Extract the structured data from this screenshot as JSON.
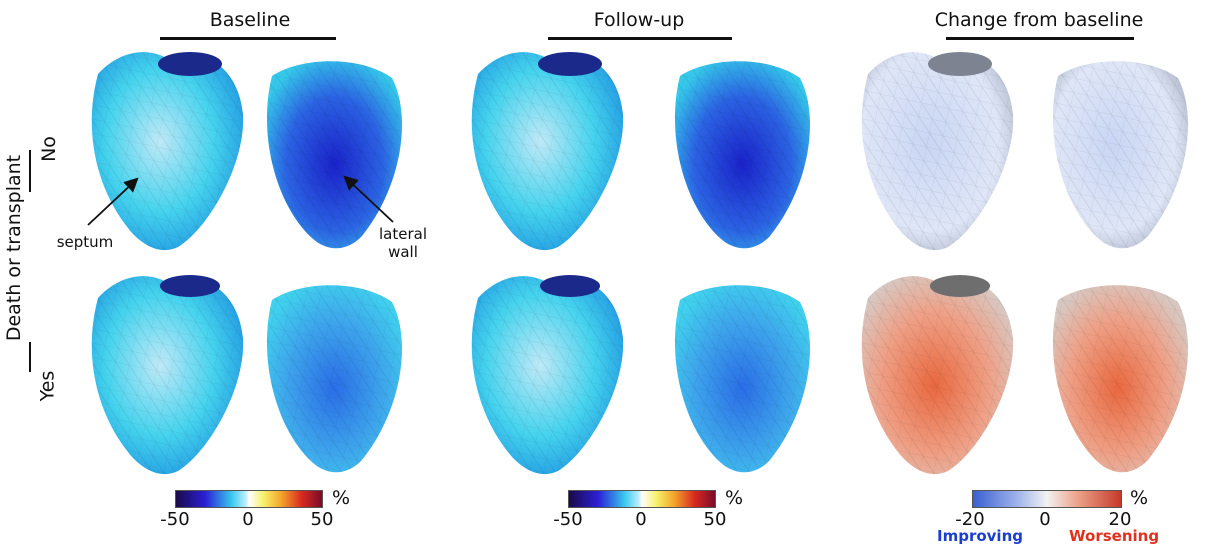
{
  "columns": {
    "baseline": "Baseline",
    "followup": "Follow-up",
    "change": "Change from baseline"
  },
  "rows": {
    "no": "No",
    "yes": "Yes",
    "group": "Death or transplant"
  },
  "annotations": {
    "septum": "septum",
    "lateral_line1": "lateral",
    "lateral_line2": "wall"
  },
  "colorbars": {
    "strain": {
      "min": "-50",
      "mid": "0",
      "max": "50",
      "unit": "%"
    },
    "change": {
      "min": "-20",
      "mid": "0",
      "max": "20",
      "unit": "%",
      "improving": "Improving",
      "worsening": "Worsening"
    }
  },
  "colors": {
    "improving": "#1a3fd0",
    "worsening": "#e0301e"
  }
}
